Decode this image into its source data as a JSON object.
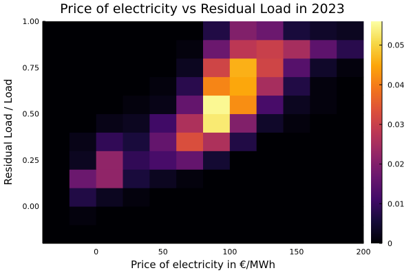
{
  "chart_data": {
    "type": "heatmap",
    "title": "Price of electricity vs Residual Load in 2023",
    "xlabel": "Price of electricity in €/MWh",
    "ylabel": "Residual Load / Load",
    "xlim": [
      -40,
      200
    ],
    "ylim": [
      -0.2,
      1.0
    ],
    "x_ticks": [
      0,
      50,
      100,
      150,
      200
    ],
    "y_ticks": [
      0.0,
      0.25,
      0.5,
      0.75,
      1.0
    ],
    "x_tick_labels": [
      "0",
      "50",
      "100",
      "150",
      "200"
    ],
    "y_tick_labels": [
      "0.00",
      "0.25",
      "0.50",
      "0.75",
      "1.00"
    ],
    "x_bin_edges": [
      -40,
      -20,
      0,
      20,
      40,
      60,
      80,
      100,
      120,
      140,
      160,
      180,
      200
    ],
    "y_bin_edges": [
      -0.2,
      -0.1,
      0.0,
      0.1,
      0.2,
      0.3,
      0.4,
      0.5,
      0.6,
      0.7,
      0.8,
      0.9,
      1.0
    ],
    "values": [
      [
        0.0,
        0.0,
        0.0,
        0.0,
        0.0,
        0.0,
        0.0,
        0.0,
        0.0,
        0.0,
        0.0,
        0.0
      ],
      [
        0.0,
        0.001,
        0.0,
        0.0,
        0.0,
        0.0,
        0.0,
        0.0,
        0.0,
        0.0,
        0.0,
        0.0
      ],
      [
        0.0,
        0.007,
        0.003,
        0.001,
        0.0,
        0.0,
        0.0,
        0.0,
        0.0,
        0.0,
        0.0,
        0.0
      ],
      [
        0.0,
        0.017,
        0.022,
        0.006,
        0.003,
        0.001,
        0.0,
        0.0,
        0.0,
        0.0,
        0.0,
        0.0
      ],
      [
        0.0,
        0.003,
        0.022,
        0.009,
        0.012,
        0.016,
        0.005,
        0.0,
        0.0,
        0.0,
        0.0,
        0.0
      ],
      [
        0.0,
        0.002,
        0.009,
        0.006,
        0.016,
        0.033,
        0.026,
        0.007,
        0.0,
        0.0,
        0.0,
        0.0
      ],
      [
        0.0,
        0.0,
        0.002,
        0.003,
        0.011,
        0.026,
        0.053,
        0.02,
        0.004,
        0.001,
        0.0,
        0.0
      ],
      [
        0.0,
        0.0,
        0.0,
        0.001,
        0.002,
        0.016,
        0.055,
        0.042,
        0.012,
        0.003,
        0.001,
        0.0
      ],
      [
        0.0,
        0.0,
        0.0,
        0.0,
        0.001,
        0.008,
        0.041,
        0.045,
        0.025,
        0.007,
        0.001,
        0.0
      ],
      [
        0.0,
        0.0,
        0.0,
        0.0,
        0.0,
        0.003,
        0.031,
        0.046,
        0.031,
        0.014,
        0.004,
        0.001
      ],
      [
        0.0,
        0.0,
        0.0,
        0.0,
        0.0,
        0.001,
        0.017,
        0.028,
        0.03,
        0.025,
        0.015,
        0.008
      ],
      [
        0.0,
        0.0,
        0.0,
        0.0,
        0.0,
        0.0,
        0.007,
        0.02,
        0.017,
        0.006,
        0.004,
        0.003
      ]
    ],
    "colormap": "inferno",
    "colorbar": {
      "min": 0,
      "max": 0.056,
      "ticks": [
        0,
        0.01,
        0.02,
        0.03,
        0.04,
        0.05
      ],
      "tick_labels": [
        "0",
        "0.01",
        "0.02",
        "0.03",
        "0.04",
        "0.05"
      ]
    },
    "grid": false,
    "legend": "colorbar-right"
  }
}
